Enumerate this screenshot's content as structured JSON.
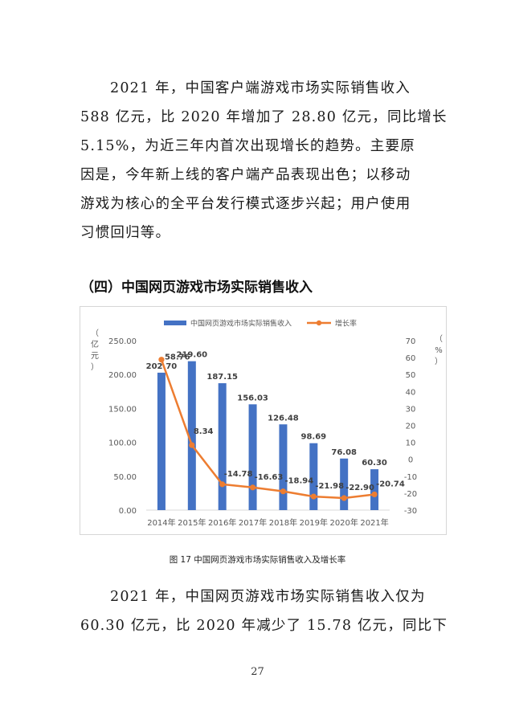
{
  "paragraph1": {
    "lines": [
      "2021 年，中国客户端游戏市场实际销售收入",
      "588 亿元，比 2020 年增加了 28.80 亿元，同比增长",
      "5.15%，为近三年内首次出现增长的趋势。主要原",
      "因是，今年新上线的客户端产品表现出色；以移动",
      "游戏为核心的全平台发行模式逐步兴起；用户使用",
      "习惯回归等。"
    ]
  },
  "section_heading": "（四）中国网页游戏市场实际销售收入",
  "chart_data": {
    "type": "bar+line",
    "categories": [
      "2014年",
      "2015年",
      "2016年",
      "2017年",
      "2018年",
      "2019年",
      "2020年",
      "2021年"
    ],
    "series": [
      {
        "name": "中国网页游戏市场实际销售收入",
        "type": "bar",
        "axis": "left",
        "color": "#4472C4",
        "values": [
          202.7,
          219.6,
          187.15,
          156.03,
          126.48,
          98.69,
          76.08,
          60.3
        ],
        "labels": [
          "202.70",
          "219.60",
          "187.15",
          "156.03",
          "126.48",
          "98.69",
          "76.08",
          "60.30"
        ]
      },
      {
        "name": "增长率",
        "type": "line",
        "axis": "right",
        "color": "#ED7D31",
        "values": [
          58.76,
          8.34,
          -14.78,
          -16.63,
          -18.94,
          -21.98,
          -22.9,
          -20.74
        ],
        "labels": [
          "58.76",
          "8.34",
          "-14.78",
          "-16.63",
          "-18.94",
          "-21.98",
          "-22.90",
          "-20.74"
        ]
      }
    ],
    "y_left": {
      "label_chars": [
        "（",
        "亿",
        "元",
        "）"
      ],
      "ylim": [
        0,
        250
      ],
      "ticks": [
        0,
        50,
        100,
        150,
        200,
        250
      ],
      "tick_labels": [
        "0.00",
        "50.00",
        "100.00",
        "150.00",
        "200.00",
        "250.00"
      ]
    },
    "y_right": {
      "label_chars": [
        "（",
        "%",
        "）"
      ],
      "ylim": [
        -30,
        70
      ],
      "ticks": [
        -30,
        -20,
        -10,
        0,
        10,
        20,
        30,
        40,
        50,
        60,
        70
      ],
      "tick_labels": [
        "-30",
        "-20",
        "-10",
        "0",
        "10",
        "20",
        "30",
        "40",
        "50",
        "60",
        "70"
      ]
    },
    "legend_position": "top-center",
    "grid": false
  },
  "figure_caption": "图 17 中国网页游戏市场实际销售收入及增长率",
  "paragraph2": {
    "lines": [
      "2021 年，中国网页游戏市场实际销售收入仅为",
      "60.30 亿元，比 2020 年减少了 15.78 亿元，同比下"
    ]
  },
  "page_number": "27"
}
